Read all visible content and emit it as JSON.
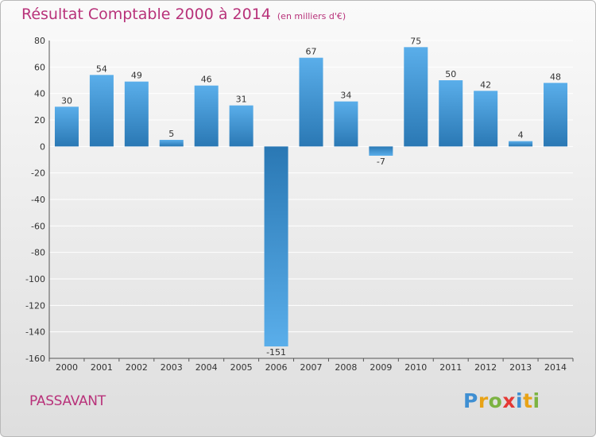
{
  "title": "Résultat Comptable 2000 à 2014",
  "subtitle": "(en milliers d'€)",
  "commune": "PASSAVANT",
  "logo": {
    "letters": [
      "P",
      "r",
      "o",
      "x",
      "i",
      "t",
      "i"
    ],
    "colors": [
      "#3f8fd2",
      "#e8a317",
      "#7cb342",
      "#e53935",
      "#3f8fd2",
      "#e8a317",
      "#7cb342"
    ]
  },
  "colors": {
    "bar_top": "#5aaeea",
    "bar_bottom": "#2a78b4",
    "title": "#b8327a",
    "grid": "#ffffff"
  },
  "chart_data": {
    "type": "bar",
    "title": "Résultat Comptable 2000 à 2014",
    "subtitle": "(en milliers d'€)",
    "categories": [
      "2000",
      "2001",
      "2002",
      "2003",
      "2004",
      "2005",
      "2006",
      "2007",
      "2008",
      "2009",
      "2010",
      "2011",
      "2012",
      "2013",
      "2014"
    ],
    "values": [
      30,
      54,
      49,
      5,
      46,
      31,
      -151,
      67,
      34,
      -7,
      75,
      50,
      42,
      4,
      48
    ],
    "data_labels": [
      "30",
      "54",
      "49",
      "5",
      "46",
      "31",
      "-151",
      "67",
      "34",
      "-7",
      "75",
      "50",
      "42",
      "4",
      "48"
    ],
    "yticks": [
      80,
      60,
      40,
      20,
      0,
      -20,
      -40,
      -60,
      -80,
      -100,
      -120,
      -140,
      -160
    ],
    "ytick_labels": [
      "80",
      "60",
      "40",
      "20",
      "0",
      "-20",
      "-40",
      "-60",
      "-80",
      "-100",
      "-120",
      "-140",
      "-160"
    ],
    "ylim": [
      -160,
      80
    ],
    "grid": true,
    "legend": false
  }
}
